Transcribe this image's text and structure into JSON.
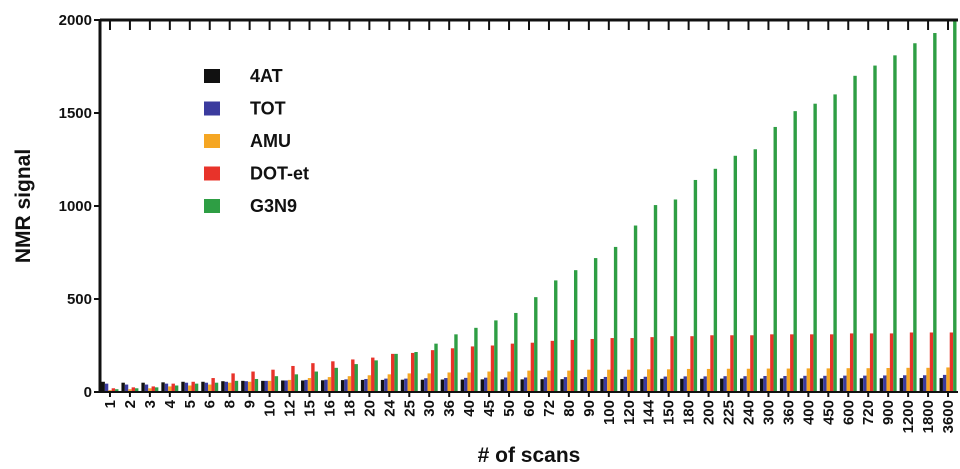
{
  "chart_data": {
    "type": "bar",
    "y_label": "NMR signal",
    "x_label": "# of scans",
    "categories": [
      "1",
      "2",
      "3",
      "4",
      "5",
      "6",
      "8",
      "9",
      "10",
      "12",
      "15",
      "16",
      "18",
      "20",
      "24",
      "25",
      "30",
      "36",
      "40",
      "45",
      "50",
      "60",
      "72",
      "80",
      "90",
      "100",
      "120",
      "144",
      "150",
      "180",
      "200",
      "225",
      "240",
      "300",
      "360",
      "400",
      "450",
      "600",
      "720",
      "900",
      "1200",
      "1800",
      "3600"
    ],
    "series": [
      {
        "name": "4AT",
        "color": "#111111",
        "values": [
          55,
          50,
          50,
          52,
          55,
          55,
          58,
          60,
          60,
          62,
          62,
          63,
          64,
          65,
          65,
          66,
          66,
          67,
          67,
          68,
          68,
          68,
          69,
          69,
          70,
          70,
          70,
          70,
          71,
          71,
          71,
          72,
          72,
          72,
          73,
          73,
          73,
          74,
          74,
          74,
          75,
          75,
          75
        ]
      },
      {
        "name": "TOT",
        "color": "#3b3b9e",
        "values": [
          45,
          40,
          40,
          45,
          50,
          50,
          55,
          58,
          60,
          62,
          65,
          66,
          68,
          70,
          72,
          72,
          74,
          75,
          76,
          77,
          78,
          78,
          79,
          80,
          80,
          81,
          82,
          82,
          83,
          84,
          84,
          85,
          85,
          86,
          86,
          87,
          87,
          88,
          88,
          89,
          90,
          90,
          92
        ]
      },
      {
        "name": "AMU",
        "color": "#f5a623",
        "values": [
          10,
          15,
          20,
          30,
          35,
          40,
          50,
          55,
          60,
          65,
          75,
          80,
          85,
          90,
          95,
          100,
          100,
          105,
          105,
          110,
          110,
          115,
          115,
          115,
          120,
          120,
          120,
          122,
          122,
          124,
          124,
          125,
          125,
          126,
          126,
          127,
          127,
          128,
          128,
          129,
          130,
          130,
          132
        ]
      },
      {
        "name": "DOT-et",
        "color": "#e8332a",
        "values": [
          20,
          25,
          30,
          45,
          55,
          75,
          100,
          110,
          120,
          140,
          155,
          165,
          175,
          185,
          205,
          210,
          225,
          235,
          245,
          250,
          260,
          265,
          275,
          280,
          285,
          290,
          290,
          295,
          300,
          300,
          305,
          305,
          305,
          310,
          310,
          310,
          310,
          315,
          315,
          315,
          320,
          320,
          320
        ]
      },
      {
        "name": "G3N9",
        "color": "#2e9e44",
        "values": [
          15,
          20,
          25,
          35,
          45,
          50,
          60,
          70,
          85,
          95,
          110,
          130,
          150,
          170,
          205,
          215,
          260,
          310,
          345,
          385,
          425,
          510,
          600,
          655,
          720,
          780,
          895,
          1005,
          1035,
          1140,
          1200,
          1270,
          1305,
          1425,
          1510,
          1550,
          1600,
          1700,
          1755,
          1810,
          1875,
          1930,
          2000
        ]
      }
    ],
    "ylim": [
      0,
      2000
    ],
    "yticks": [
      0,
      500,
      1000,
      1500,
      2000
    ],
    "legend": "upper-left"
  }
}
